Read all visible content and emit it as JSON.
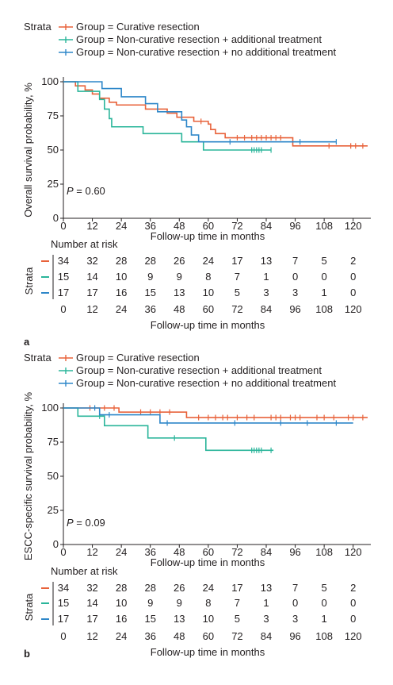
{
  "chart_data": [
    {
      "panel_letter": "a",
      "type": "line",
      "legend_title": "Strata",
      "legend_position": "top-left",
      "ylabel": "Overall survival probability, %",
      "xlabel": "Follow-up time in months",
      "xlim": [
        0,
        126
      ],
      "ylim": [
        0,
        100
      ],
      "x_ticks": [
        0,
        12,
        24,
        36,
        48,
        60,
        72,
        84,
        96,
        108,
        120
      ],
      "y_ticks": [
        0,
        25,
        50,
        75,
        100
      ],
      "annotation_p": "P",
      "annotation_value": " = 0.60",
      "series": [
        {
          "name": "Group = Curative resection",
          "color": "#e8623a",
          "steps": [
            [
              0,
              100
            ],
            [
              5,
              97
            ],
            [
              9,
              94
            ],
            [
              12,
              91
            ],
            [
              15,
              88
            ],
            [
              19,
              85
            ],
            [
              22,
              83
            ],
            [
              34,
              80
            ],
            [
              43,
              77
            ],
            [
              47,
              74
            ],
            [
              54,
              71
            ],
            [
              60,
              69
            ],
            [
              61,
              65
            ],
            [
              63,
              62
            ],
            [
              67,
              59
            ],
            [
              95,
              53
            ],
            [
              126,
              53
            ]
          ],
          "censored": [
            57,
            72,
            75,
            78,
            80,
            82,
            84,
            86,
            88,
            90,
            110,
            119,
            121,
            124
          ]
        },
        {
          "name": "Group = Non-curative resection + additional treatment",
          "color": "#2ab59a",
          "steps": [
            [
              0,
              100
            ],
            [
              6,
              93
            ],
            [
              15,
              87
            ],
            [
              17,
              80
            ],
            [
              19,
              73
            ],
            [
              20,
              67
            ],
            [
              33,
              62
            ],
            [
              49,
              56
            ],
            [
              58,
              50
            ],
            [
              86,
              50
            ]
          ],
          "censored": [
            78,
            79,
            80,
            81,
            82,
            86
          ]
        },
        {
          "name": "Group = Non-curative resection + no additional treatment",
          "color": "#2e87c9",
          "steps": [
            [
              0,
              100
            ],
            [
              16,
              95
            ],
            [
              24,
              89
            ],
            [
              34,
              84
            ],
            [
              39,
              78
            ],
            [
              49,
              72
            ],
            [
              51,
              67
            ],
            [
              53,
              61
            ],
            [
              56,
              56
            ],
            [
              61,
              56
            ],
            [
              113,
              56
            ]
          ],
          "censored": [
            69,
            98,
            113
          ]
        }
      ],
      "risk_table": {
        "title": "Number at risk",
        "axis_label": "Strata",
        "xlabel": "Follow-up time in months",
        "rows": [
          [
            "34",
            "32",
            "28",
            "28",
            "26",
            "24",
            "17",
            "13",
            "7",
            "5",
            "2"
          ],
          [
            "15",
            "14",
            "10",
            "9",
            "9",
            "8",
            "7",
            "1",
            "0",
            "0",
            "0"
          ],
          [
            "17",
            "17",
            "16",
            "15",
            "13",
            "10",
            "5",
            "3",
            "3",
            "1",
            "0"
          ]
        ]
      }
    },
    {
      "panel_letter": "b",
      "type": "line",
      "legend_title": "Strata",
      "legend_position": "top-left",
      "ylabel": "ESCC-specific survival probability, %",
      "xlabel": "Follow-up time in months",
      "xlim": [
        0,
        126
      ],
      "ylim": [
        0,
        100
      ],
      "x_ticks": [
        0,
        12,
        24,
        36,
        48,
        60,
        72,
        84,
        96,
        108,
        120
      ],
      "y_ticks": [
        0,
        25,
        50,
        75,
        100
      ],
      "annotation_p": "P",
      "annotation_value": " = 0.09",
      "series": [
        {
          "name": "Group = Curative resection",
          "color": "#e8623a",
          "steps": [
            [
              0,
              100
            ],
            [
              23,
              97
            ],
            [
              51,
              93
            ],
            [
              126,
              93
            ]
          ],
          "censored": [
            11,
            17,
            21,
            32,
            36,
            40,
            44,
            56,
            60,
            63,
            66,
            68,
            72,
            76,
            79,
            86,
            88,
            90,
            94,
            96,
            98,
            105,
            108,
            112,
            118,
            120,
            124
          ]
        },
        {
          "name": "Group = Non-curative resection + additional treatment",
          "color": "#2ab59a",
          "steps": [
            [
              0,
              100
            ],
            [
              6,
              94
            ],
            [
              17,
              87
            ],
            [
              35,
              78
            ],
            [
              59,
              69
            ],
            [
              87,
              69
            ]
          ],
          "censored": [
            15,
            46,
            78,
            79,
            80,
            81,
            82,
            86
          ]
        },
        {
          "name": "Group = Non-curative resection + no additional treatment",
          "color": "#2e87c9",
          "steps": [
            [
              0,
              100
            ],
            [
              15,
              95
            ],
            [
              40,
              89
            ],
            [
              120,
              89
            ]
          ],
          "censored": [
            13,
            19,
            43,
            71,
            90,
            101,
            113
          ]
        }
      ],
      "risk_table": {
        "title": "Number at risk",
        "axis_label": "Strata",
        "xlabel": "Follow-up time in months",
        "rows": [
          [
            "34",
            "32",
            "28",
            "28",
            "26",
            "24",
            "17",
            "13",
            "7",
            "5",
            "2"
          ],
          [
            "15",
            "14",
            "10",
            "9",
            "9",
            "8",
            "7",
            "1",
            "0",
            "0",
            "0"
          ],
          [
            "17",
            "17",
            "16",
            "15",
            "13",
            "10",
            "5",
            "3",
            "3",
            "1",
            "0"
          ]
        ]
      }
    }
  ]
}
